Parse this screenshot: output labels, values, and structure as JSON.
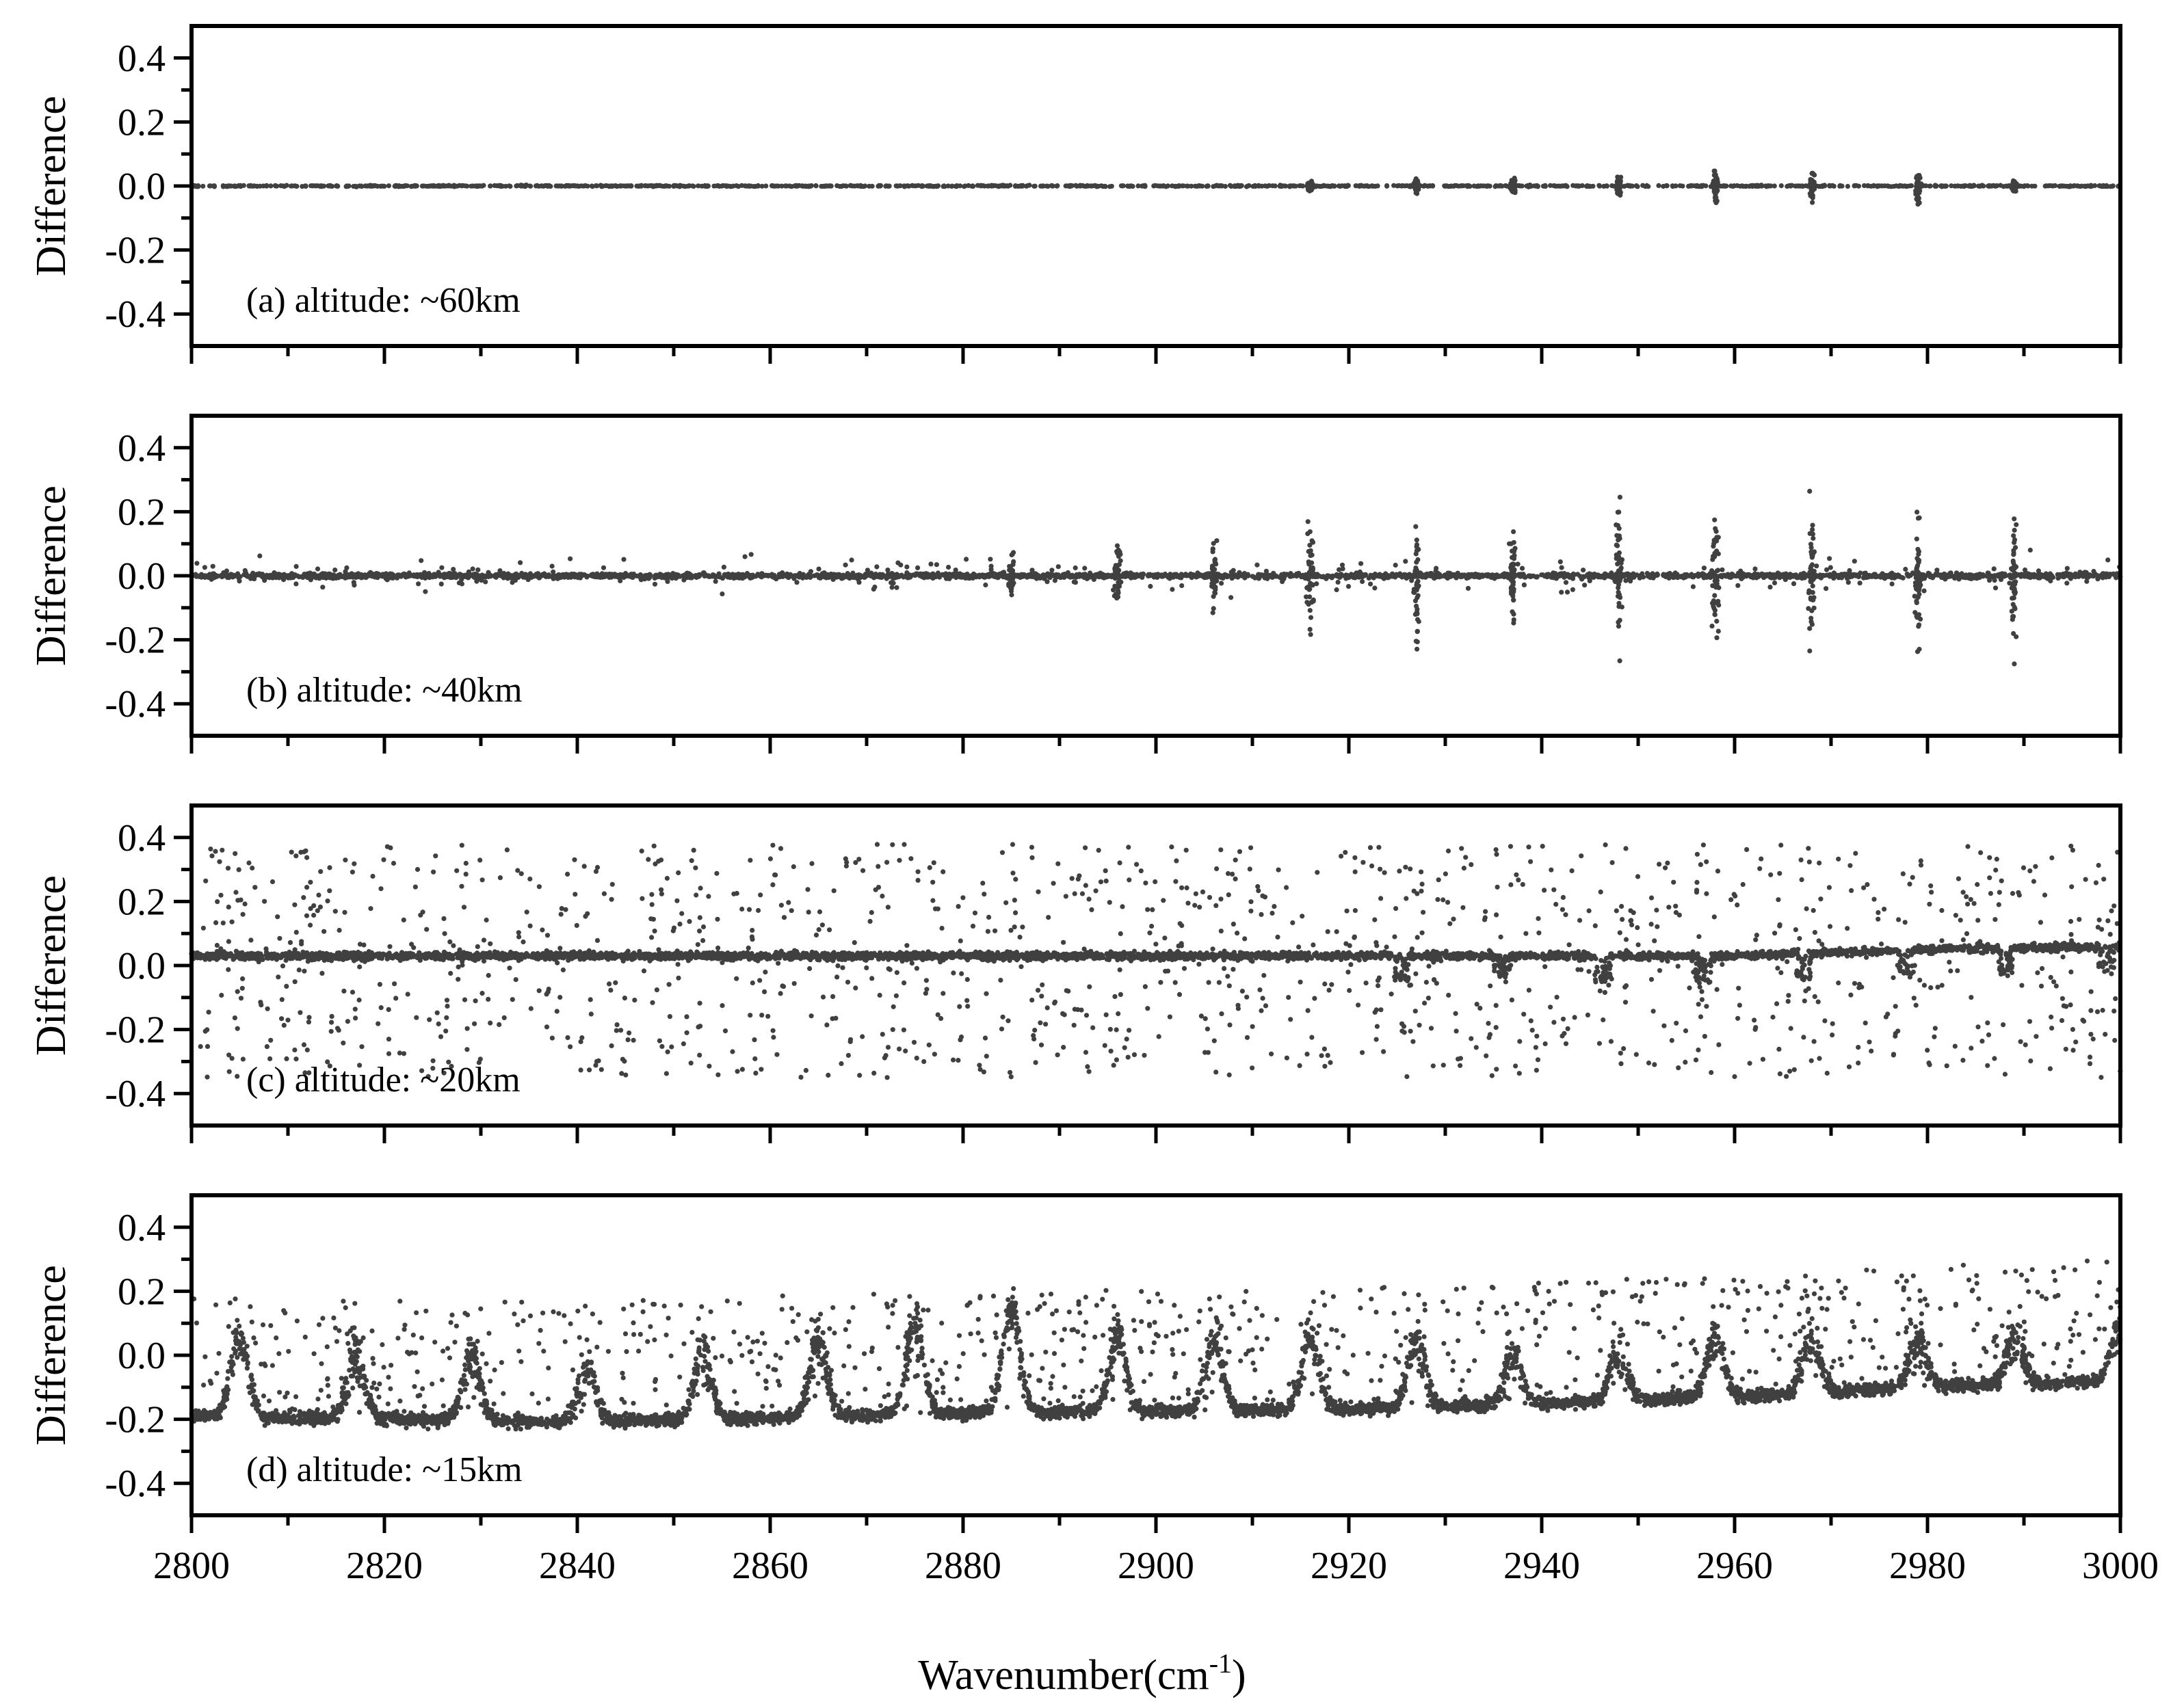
{
  "figure": {
    "xlabel": "Wavenumber(cm",
    "xlabel_sup": "-1",
    "xlabel_close": ")"
  },
  "chart_data": [
    {
      "type": "scatter",
      "annotation": "(a) altitude: ~60km",
      "ylabel": "Difference",
      "xlim": [
        2800,
        3000
      ],
      "ylim": [
        -0.5,
        0.5
      ],
      "xticks": [
        2800,
        2820,
        2840,
        2860,
        2880,
        2900,
        2920,
        2940,
        2960,
        2980,
        3000
      ],
      "yticks": [
        -0.4,
        -0.2,
        0.0,
        0.2,
        0.4
      ],
      "yticklabels": [
        "-0.4",
        "-0.2",
        "0.0",
        "0.2",
        "0.4"
      ],
      "xticklabels_visible": false,
      "baseline": {
        "x": [
          2800,
          3000
        ],
        "y": [
          0.0,
          0.0
        ]
      },
      "spread_x": [
        2916,
        2927,
        2937,
        2948,
        2958,
        2968,
        2979,
        2989
      ],
      "spread_y": [
        0.04,
        0.07,
        0.06,
        0.1,
        0.15,
        0.13,
        0.13,
        0.05
      ]
    },
    {
      "type": "scatter",
      "annotation": "(b) altitude: ~40km",
      "ylabel": "Difference",
      "xlim": [
        2800,
        3000
      ],
      "ylim": [
        -0.5,
        0.5
      ],
      "xticks": [
        2800,
        2820,
        2840,
        2860,
        2880,
        2900,
        2920,
        2940,
        2960,
        2980,
        3000
      ],
      "yticks": [
        -0.4,
        -0.2,
        0.0,
        0.2,
        0.4
      ],
      "yticklabels": [
        "-0.4",
        "-0.2",
        "0.0",
        "0.2",
        "0.4"
      ],
      "xticklabels_visible": false,
      "baseline": {
        "x": [
          2800,
          3000
        ],
        "y": [
          0.0,
          0.0
        ]
      },
      "spread_x": [
        2885,
        2896,
        2906,
        2916,
        2927,
        2937,
        2948,
        2958,
        2968,
        2979,
        2989
      ],
      "spread_y": [
        0.14,
        0.2,
        0.21,
        0.37,
        0.4,
        0.31,
        0.47,
        0.45,
        0.43,
        0.45,
        0.41
      ]
    },
    {
      "type": "scatter",
      "annotation": "(c) altitude: ~20km",
      "ylabel": "Difference",
      "xlim": [
        2800,
        3000
      ],
      "ylim": [
        -0.5,
        0.5
      ],
      "xticks": [
        2800,
        2820,
        2840,
        2860,
        2880,
        2900,
        2920,
        2940,
        2960,
        2980,
        3000
      ],
      "yticks": [
        -0.4,
        -0.2,
        0.0,
        0.2,
        0.4
      ],
      "yticklabels": [
        "-0.4",
        "-0.2",
        "0.0",
        "0.2",
        "0.4"
      ],
      "xticklabels_visible": false,
      "baseline": {
        "x": [
          2800,
          2900,
          2960,
          2980,
          3000
        ],
        "y": [
          0.03,
          0.03,
          0.03,
          0.05,
          0.06
        ]
      },
      "spread_y": [
        -0.35,
        0.38
      ]
    },
    {
      "type": "scatter",
      "annotation": "(d) altitude: ~15km",
      "ylabel": "Difference",
      "xlim": [
        2800,
        3000
      ],
      "ylim": [
        -0.5,
        0.5
      ],
      "xticks": [
        2800,
        2820,
        2840,
        2860,
        2880,
        2900,
        2920,
        2940,
        2960,
        2980,
        3000
      ],
      "yticks": [
        -0.4,
        -0.2,
        0.0,
        0.2,
        0.4
      ],
      "yticklabels": [
        "-0.4",
        "-0.2",
        "0.0",
        "0.2",
        "0.4"
      ],
      "xticklabels": [
        "2800",
        "2820",
        "2840",
        "2860",
        "2880",
        "2900",
        "2920",
        "2940",
        "2960",
        "2980",
        "3000"
      ],
      "xticklabels_visible": true,
      "baseline": {
        "x": [
          2800,
          2840,
          2880,
          2920,
          2960,
          2980,
          3000
        ],
        "y": [
          -0.19,
          -0.21,
          -0.18,
          -0.17,
          -0.13,
          -0.1,
          -0.08
        ]
      },
      "peaks_x": [
        2805,
        2817,
        2829,
        2841,
        2853,
        2865,
        2875,
        2885,
        2896,
        2906,
        2916,
        2927,
        2937,
        2948,
        2958,
        2968,
        2979,
        2989,
        3000
      ],
      "peaks_y": [
        0.05,
        0.0,
        0.0,
        -0.05,
        0.0,
        0.05,
        0.1,
        0.15,
        0.05,
        0.05,
        0.05,
        0.05,
        0.0,
        0.0,
        0.05,
        0.05,
        0.05,
        0.05,
        0.1
      ]
    }
  ]
}
